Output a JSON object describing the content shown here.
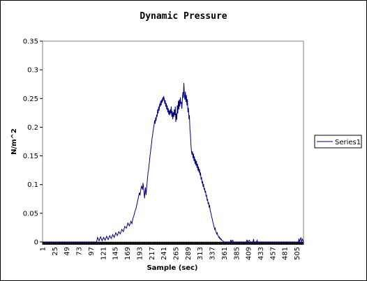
{
  "chart_data": {
    "type": "line",
    "title": "Dynamic Pressure",
    "xlabel": "Sample (sec)",
    "ylabel": "N/m^2",
    "ylim": [
      0,
      0.35
    ],
    "yticks": [
      "0",
      "0.05",
      "0.1",
      "0.15",
      "0.2",
      "0.25",
      "0.3",
      "0.35"
    ],
    "xlim": [
      1,
      518
    ],
    "xticks": [
      "1",
      "25",
      "49",
      "73",
      "97",
      "121",
      "145",
      "169",
      "193",
      "217",
      "241",
      "265",
      "289",
      "313",
      "337",
      "361",
      "385",
      "409",
      "433",
      "457",
      "481",
      "505"
    ],
    "grid": false,
    "legend": "right",
    "series": [
      {
        "name": "Series1",
        "color": "#000080",
        "points": [
          [
            1,
            0
          ],
          [
            100,
            0
          ],
          [
            108,
            0
          ],
          [
            110,
            0.008
          ],
          [
            113,
            0.002
          ],
          [
            116,
            0.009
          ],
          [
            119,
            0.002
          ],
          [
            122,
            0.008
          ],
          [
            125,
            0.003
          ],
          [
            128,
            0.01
          ],
          [
            131,
            0.004
          ],
          [
            134,
            0.011
          ],
          [
            137,
            0.006
          ],
          [
            140,
            0.013
          ],
          [
            143,
            0.008
          ],
          [
            146,
            0.016
          ],
          [
            149,
            0.011
          ],
          [
            152,
            0.018
          ],
          [
            155,
            0.014
          ],
          [
            158,
            0.022
          ],
          [
            161,
            0.018
          ],
          [
            164,
            0.027
          ],
          [
            167,
            0.024
          ],
          [
            170,
            0.033
          ],
          [
            173,
            0.028
          ],
          [
            176,
            0.036
          ],
          [
            178,
            0.032
          ],
          [
            180,
            0.041
          ],
          [
            182,
            0.046
          ],
          [
            184,
            0.053
          ],
          [
            186,
            0.058
          ],
          [
            188,
            0.066
          ],
          [
            190,
            0.074
          ],
          [
            191,
            0.079
          ],
          [
            193,
            0.086
          ],
          [
            194,
            0.081
          ],
          [
            196,
            0.093
          ],
          [
            197,
            0.098
          ],
          [
            199,
            0.091
          ],
          [
            200,
            0.103
          ],
          [
            201,
            0.096
          ],
          [
            202,
            0.088
          ],
          [
            203,
            0.076
          ],
          [
            204,
            0.086
          ],
          [
            205,
            0.095
          ],
          [
            206,
            0.082
          ],
          [
            207,
            0.092
          ],
          [
            208,
            0.102
          ],
          [
            209,
            0.112
          ],
          [
            210,
            0.121
          ],
          [
            211,
            0.126
          ],
          [
            212,
            0.134
          ],
          [
            213,
            0.142
          ],
          [
            214,
            0.151
          ],
          [
            215,
            0.158
          ],
          [
            216,
            0.166
          ],
          [
            217,
            0.172
          ],
          [
            218,
            0.181
          ],
          [
            219,
            0.186
          ],
          [
            220,
            0.193
          ],
          [
            221,
            0.199
          ],
          [
            222,
            0.204
          ],
          [
            223,
            0.212
          ],
          [
            224,
            0.206
          ],
          [
            225,
            0.217
          ],
          [
            226,
            0.211
          ],
          [
            227,
            0.222
          ],
          [
            228,
            0.218
          ],
          [
            229,
            0.231
          ],
          [
            230,
            0.224
          ],
          [
            231,
            0.236
          ],
          [
            232,
            0.229
          ],
          [
            233,
            0.241
          ],
          [
            234,
            0.236
          ],
          [
            235,
            0.246
          ],
          [
            236,
            0.238
          ],
          [
            237,
            0.248
          ],
          [
            238,
            0.243
          ],
          [
            239,
            0.252
          ],
          [
            240,
            0.246
          ],
          [
            241,
            0.254
          ],
          [
            242,
            0.249
          ],
          [
            243,
            0.241
          ],
          [
            244,
            0.247
          ],
          [
            245,
            0.236
          ],
          [
            246,
            0.242
          ],
          [
            247,
            0.231
          ],
          [
            248,
            0.238
          ],
          [
            249,
            0.226
          ],
          [
            250,
            0.233
          ],
          [
            251,
            0.222
          ],
          [
            252,
            0.229
          ],
          [
            253,
            0.221
          ],
          [
            254,
            0.231
          ],
          [
            255,
            0.224
          ],
          [
            256,
            0.236
          ],
          [
            257,
            0.218
          ],
          [
            258,
            0.228
          ],
          [
            259,
            0.214
          ],
          [
            260,
            0.226
          ],
          [
            261,
            0.218
          ],
          [
            262,
            0.231
          ],
          [
            263,
            0.221
          ],
          [
            264,
            0.236
          ],
          [
            265,
            0.209
          ],
          [
            266,
            0.224
          ],
          [
            267,
            0.213
          ],
          [
            268,
            0.238
          ],
          [
            269,
            0.224
          ],
          [
            270,
            0.246
          ],
          [
            271,
            0.231
          ],
          [
            272,
            0.248
          ],
          [
            273,
            0.236
          ],
          [
            274,
            0.252
          ],
          [
            275,
            0.241
          ],
          [
            276,
            0.244
          ],
          [
            277,
            0.232
          ],
          [
            278,
            0.248
          ],
          [
            279,
            0.261
          ],
          [
            280,
            0.251
          ],
          [
            281,
            0.277
          ],
          [
            282,
            0.256
          ],
          [
            283,
            0.248
          ],
          [
            284,
            0.262
          ],
          [
            285,
            0.244
          ],
          [
            286,
            0.256
          ],
          [
            287,
            0.238
          ],
          [
            288,
            0.249
          ],
          [
            289,
            0.226
          ],
          [
            290,
            0.234
          ],
          [
            291,
            0.214
          ],
          [
            292,
            0.221
          ],
          [
            293,
            0.196
          ],
          [
            294,
            0.186
          ],
          [
            295,
            0.169
          ],
          [
            296,
            0.158
          ],
          [
            297,
            0.152
          ],
          [
            298,
            0.158
          ],
          [
            299,
            0.146
          ],
          [
            300,
            0.154
          ],
          [
            301,
            0.141
          ],
          [
            302,
            0.149
          ],
          [
            303,
            0.136
          ],
          [
            304,
            0.144
          ],
          [
            305,
            0.133
          ],
          [
            306,
            0.141
          ],
          [
            307,
            0.129
          ],
          [
            308,
            0.136
          ],
          [
            309,
            0.124
          ],
          [
            310,
            0.131
          ],
          [
            311,
            0.121
          ],
          [
            312,
            0.127
          ],
          [
            313,
            0.116
          ],
          [
            314,
            0.121
          ],
          [
            315,
            0.109
          ],
          [
            316,
            0.113
          ],
          [
            317,
            0.102
          ],
          [
            318,
            0.106
          ],
          [
            319,
            0.096
          ],
          [
            320,
            0.101
          ],
          [
            321,
            0.091
          ],
          [
            322,
            0.094
          ],
          [
            323,
            0.086
          ],
          [
            324,
            0.089
          ],
          [
            325,
            0.079
          ],
          [
            326,
            0.082
          ],
          [
            327,
            0.072
          ],
          [
            328,
            0.075
          ],
          [
            329,
            0.066
          ],
          [
            330,
            0.069
          ],
          [
            331,
            0.061
          ],
          [
            332,
            0.063
          ],
          [
            333,
            0.056
          ],
          [
            334,
            0.052
          ],
          [
            335,
            0.049
          ],
          [
            336,
            0.044
          ],
          [
            337,
            0.041
          ],
          [
            338,
            0.036
          ],
          [
            339,
            0.033
          ],
          [
            340,
            0.029
          ],
          [
            341,
            0.026
          ],
          [
            342,
            0.022
          ],
          [
            343,
            0.024
          ],
          [
            344,
            0.019
          ],
          [
            345,
            0.017
          ],
          [
            346,
            0.014
          ],
          [
            347,
            0.016
          ],
          [
            348,
            0.012
          ],
          [
            349,
            0.011
          ],
          [
            350,
            0.008
          ],
          [
            351,
            0.009
          ],
          [
            352,
            0.006
          ],
          [
            353,
            0.007
          ],
          [
            354,
            0.004
          ],
          [
            355,
            0.005
          ],
          [
            356,
            0.003
          ],
          [
            358,
            0.002
          ],
          [
            360,
            0
          ],
          [
            373,
            0
          ],
          [
            374,
            0.004
          ],
          [
            375,
            0
          ],
          [
            378,
            0.003
          ],
          [
            379,
            0
          ],
          [
            405,
            0
          ],
          [
            406,
            0.004
          ],
          [
            407,
            0
          ],
          [
            411,
            0.003
          ],
          [
            412,
            0
          ],
          [
            418,
            0
          ],
          [
            419,
            0.005
          ],
          [
            420,
            0
          ],
          [
            425,
            0
          ],
          [
            426,
            0.003
          ],
          [
            427,
            0
          ],
          [
            508,
            0
          ],
          [
            509,
            0.006
          ],
          [
            510,
            0
          ],
          [
            513,
            0.008
          ],
          [
            514,
            0
          ],
          [
            516,
            0.005
          ],
          [
            518,
            0
          ]
        ]
      }
    ]
  }
}
